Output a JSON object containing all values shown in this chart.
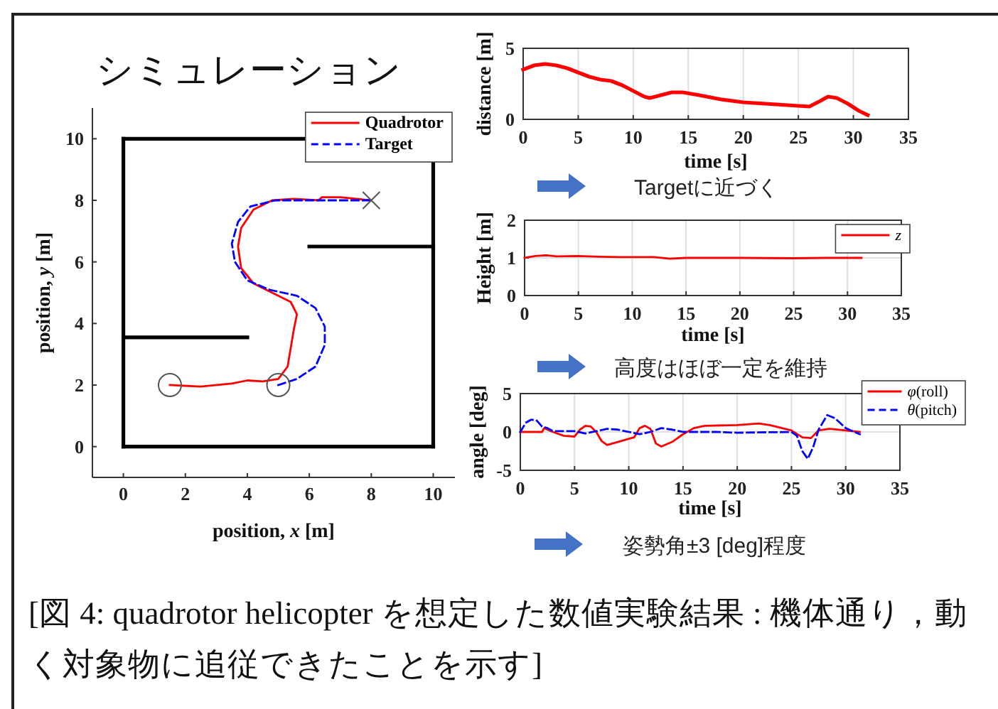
{
  "chart_data": [
    {
      "type": "line",
      "title": "シミュレーション",
      "xlabel": "position, *x*  [m]",
      "ylabel": "position, *y*  [m]",
      "xlim": [
        -1,
        10.7
      ],
      "ylim": [
        -1,
        11
      ],
      "xticks": [
        0,
        2,
        4,
        6,
        8,
        10
      ],
      "yticks": [
        0,
        2,
        4,
        6,
        8,
        10
      ],
      "legend": "top right",
      "annotations": [
        "[図 4: quadrotor helicopter を想定した数値実験結果 : 機体通り，動く対象物に追従できたことを示す]"
      ],
      "series": [
        {
          "name": "Quadrotor",
          "color": "#ff0000",
          "line_style": "solid",
          "x": [
            1.5,
            2.5,
            3.5,
            4,
            4.5,
            5,
            5.3,
            5.4,
            5.5,
            5.6,
            5.4,
            4.8,
            4.2,
            3.8,
            3.7,
            3.8,
            4.2,
            4.8,
            5.5,
            6.3,
            6.4,
            7,
            8
          ],
          "values": [
            2,
            1.95,
            2.05,
            2.15,
            2.12,
            2.2,
            2.6,
            3.2,
            3.8,
            4.3,
            4.7,
            5,
            5.3,
            5.8,
            6.5,
            7.1,
            7.7,
            8,
            8.05,
            8,
            8.1,
            8.1,
            8
          ]
        },
        {
          "name": "Target",
          "color": "#0000ff",
          "line_style": "dashed",
          "x": [
            5,
            5.6,
            6.2,
            6.5,
            6.5,
            6.2,
            5.6,
            4.7,
            4,
            3.6,
            3.5,
            3.7,
            4.1,
            4.9,
            6,
            7,
            8
          ],
          "values": [
            2,
            2.2,
            2.6,
            3.3,
            3.9,
            4.5,
            4.9,
            5.1,
            5.4,
            6,
            6.6,
            7.3,
            7.8,
            8,
            8,
            8,
            8
          ]
        },
        {
          "color": "#000000",
          "x": [
            0,
            10
          ],
          "values": [
            0,
            0
          ]
        },
        {
          "color": "#000000",
          "x": [
            0,
            5.8
          ],
          "values": [
            10,
            10
          ]
        },
        {
          "color": "#000000",
          "x": [
            0,
            0
          ],
          "values": [
            0,
            10
          ]
        },
        {
          "color": "#000000",
          "x": [
            10,
            10
          ],
          "values": [
            0,
            9.2
          ]
        },
        {
          "color": "#000000",
          "x": [
            0,
            4
          ],
          "values": [
            3.55,
            3.55
          ]
        },
        {
          "color": "#000000",
          "x": [
            6,
            10
          ],
          "values": [
            6.5,
            6.5
          ]
        },
        {
          "type": "scatter",
          "marker": "circle",
          "color": "#555555",
          "x": [
            1.5,
            5
          ],
          "values": [
            2,
            2
          ]
        },
        {
          "type": "scatter",
          "marker": "cross",
          "color": "#555555",
          "x": [
            8
          ],
          "values": [
            8
          ]
        }
      ]
    },
    {
      "type": "line",
      "xlabel": "time [s]",
      "ylabel": "distance [m]",
      "xlim": [
        0,
        35
      ],
      "ylim": [
        0,
        5
      ],
      "xticks": [
        0,
        5,
        10,
        15,
        20,
        25,
        30,
        35
      ],
      "yticks": [
        0,
        5
      ],
      "grid": true,
      "annotations": [
        "Targetに近づく"
      ],
      "series": [
        {
          "color": "#ff0000",
          "x": [
            0,
            1,
            2,
            3,
            4,
            5,
            6,
            7,
            8,
            9,
            10,
            11,
            11.5,
            12.5,
            13.5,
            14.5,
            16,
            18,
            20,
            22,
            24,
            26,
            27,
            27.7,
            28.5,
            29.5,
            30.5,
            31.3
          ],
          "values": [
            3.5,
            3.8,
            3.9,
            3.8,
            3.6,
            3.3,
            3,
            2.8,
            2.7,
            2.4,
            2,
            1.6,
            1.5,
            1.7,
            1.9,
            1.9,
            1.7,
            1.4,
            1.2,
            1.1,
            1,
            0.9,
            1.3,
            1.6,
            1.5,
            1.1,
            0.6,
            0.3
          ]
        }
      ]
    },
    {
      "type": "line",
      "xlabel": "time [s]",
      "ylabel": "Height [m]",
      "xlim": [
        0,
        35
      ],
      "ylim": [
        0,
        2
      ],
      "xticks": [
        0,
        5,
        10,
        15,
        20,
        25,
        30,
        35
      ],
      "yticks": [
        0,
        1,
        2
      ],
      "grid": true,
      "legend": "top right",
      "annotations": [
        "高度はほぼ一定を維持"
      ],
      "series": [
        {
          "name": "*z*",
          "color": "#ff0000",
          "x": [
            0,
            1,
            2,
            3,
            5,
            7,
            9,
            12,
            13.5,
            15,
            20,
            25,
            28,
            31.3
          ],
          "values": [
            1,
            1.05,
            1.07,
            1.04,
            1.05,
            1.03,
            1.02,
            1.02,
            0.98,
            1,
            1,
            0.99,
            1,
            1
          ]
        }
      ]
    },
    {
      "type": "line",
      "xlabel": "time [s]",
      "ylabel": "angle [deg]",
      "xlim": [
        0,
        35
      ],
      "ylim": [
        -5,
        5
      ],
      "xticks": [
        0,
        5,
        10,
        15,
        20,
        25,
        30,
        35
      ],
      "yticks": [
        -5,
        0,
        5
      ],
      "grid": true,
      "legend": "top right",
      "annotations": [
        "姿勢角±3 [deg]程度"
      ],
      "series": [
        {
          "name": "*φ*(roll)",
          "color": "#ff0000",
          "line_style": "solid",
          "x": [
            0,
            2,
            2.2,
            3,
            4,
            5,
            5.5,
            6,
            6.5,
            7,
            7.5,
            8,
            9,
            10,
            10.5,
            11,
            11.5,
            12,
            12.5,
            13,
            14,
            15,
            16,
            17,
            20,
            22,
            23,
            25,
            26,
            26.8,
            27.5,
            28.5,
            30,
            31.3
          ],
          "values": [
            0,
            0,
            0.5,
            0,
            -0.5,
            -0.6,
            0.3,
            0.8,
            0.7,
            0,
            -1.2,
            -1.7,
            -1.3,
            -0.9,
            -0.7,
            0.5,
            0.8,
            0.4,
            -1.5,
            -1.9,
            -1.3,
            -0.3,
            0.5,
            0.8,
            0.9,
            1.1,
            0.9,
            0.2,
            -0.7,
            -0.8,
            0.2,
            0.4,
            0.2,
            0
          ]
        },
        {
          "name": "*θ*(pitch)",
          "color": "#0000ff",
          "line_style": "dashed",
          "x": [
            0,
            0.5,
            1,
            1.5,
            2,
            2.5,
            3,
            4,
            5,
            6,
            7,
            8,
            9,
            10,
            11,
            12,
            13,
            14,
            15,
            18,
            20,
            25,
            25.5,
            26,
            26.5,
            27,
            27.5,
            28.3,
            29,
            30,
            31.3
          ],
          "values": [
            0,
            1.2,
            1.6,
            1.5,
            0.7,
            0.5,
            0.1,
            0.1,
            0.1,
            -0.2,
            0.1,
            0.4,
            0.3,
            0,
            -0.3,
            0,
            0.5,
            0.3,
            0,
            0,
            -0.1,
            0,
            -0.5,
            -2.5,
            -3.5,
            -2,
            0.3,
            2.2,
            1.8,
            0.5,
            -0.3
          ]
        }
      ]
    }
  ]
}
